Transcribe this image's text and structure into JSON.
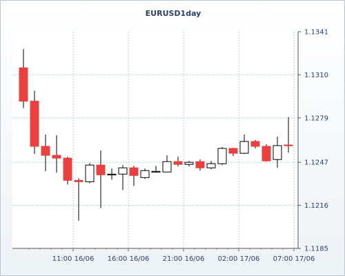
{
  "chart_data": {
    "type": "candlestick",
    "title": "EURUSD1day",
    "xlabel": "",
    "ylabel": "",
    "ylim": [
      1.1185,
      1.1341
    ],
    "y_ticks": [
      "1.1341",
      "1.1310",
      "1.1279",
      "1.1247",
      "1.1216",
      "1.1185"
    ],
    "x_ticks": [
      "11:00 16/06",
      "16:00 16/06",
      "21:00 16/06",
      "02:00 17/06",
      "07:00 17/06"
    ],
    "x_tick_positions": [
      4.5,
      9.5,
      14.5,
      19.5,
      24.5
    ],
    "grid": true,
    "colors": {
      "bull_fill": "#ffffff",
      "bear_fill": "#e8413f",
      "outline": "#000000",
      "grid": "#a9d3d8",
      "axis_text": "#2b3f6b"
    },
    "candles": [
      {
        "o": 1.1315,
        "h": 1.13285,
        "l": 1.1286,
        "c": 1.1291
      },
      {
        "o": 1.1291,
        "h": 1.12985,
        "l": 1.1253,
        "c": 1.12585
      },
      {
        "o": 1.12585,
        "h": 1.1267,
        "l": 1.12405,
        "c": 1.1252
      },
      {
        "o": 1.1252,
        "h": 1.12665,
        "l": 1.12395,
        "c": 1.125
      },
      {
        "o": 1.125,
        "h": 1.1251,
        "l": 1.1231,
        "c": 1.1234
      },
      {
        "o": 1.1234,
        "h": 1.12355,
        "l": 1.1205,
        "c": 1.1233
      },
      {
        "o": 1.1233,
        "h": 1.12465,
        "l": 1.1232,
        "c": 1.1245
      },
      {
        "o": 1.1245,
        "h": 1.12555,
        "l": 1.1214,
        "c": 1.1238
      },
      {
        "o": 1.1238,
        "h": 1.12425,
        "l": 1.12345,
        "c": 1.12385
      },
      {
        "o": 1.12385,
        "h": 1.1245,
        "l": 1.1227,
        "c": 1.1243
      },
      {
        "o": 1.1243,
        "h": 1.12445,
        "l": 1.123,
        "c": 1.12375
      },
      {
        "o": 1.1236,
        "h": 1.12425,
        "l": 1.1235,
        "c": 1.1241
      },
      {
        "o": 1.124,
        "h": 1.12445,
        "l": 1.12395,
        "c": 1.12405
      },
      {
        "o": 1.124,
        "h": 1.1252,
        "l": 1.124,
        "c": 1.12475
      },
      {
        "o": 1.12475,
        "h": 1.1251,
        "l": 1.1244,
        "c": 1.12455
      },
      {
        "o": 1.12455,
        "h": 1.1248,
        "l": 1.1244,
        "c": 1.1247
      },
      {
        "o": 1.12475,
        "h": 1.1249,
        "l": 1.1241,
        "c": 1.1243
      },
      {
        "o": 1.1243,
        "h": 1.1248,
        "l": 1.1242,
        "c": 1.1246
      },
      {
        "o": 1.1246,
        "h": 1.1258,
        "l": 1.1245,
        "c": 1.1257
      },
      {
        "o": 1.1257,
        "h": 1.12575,
        "l": 1.12515,
        "c": 1.12535
      },
      {
        "o": 1.12535,
        "h": 1.1267,
        "l": 1.1253,
        "c": 1.1262
      },
      {
        "o": 1.1262,
        "h": 1.1263,
        "l": 1.1257,
        "c": 1.12585
      },
      {
        "o": 1.12585,
        "h": 1.126,
        "l": 1.12475,
        "c": 1.1248
      },
      {
        "o": 1.1249,
        "h": 1.12655,
        "l": 1.1243,
        "c": 1.1259
      },
      {
        "o": 1.12595,
        "h": 1.12795,
        "l": 1.1254,
        "c": 1.12595
      }
    ]
  }
}
